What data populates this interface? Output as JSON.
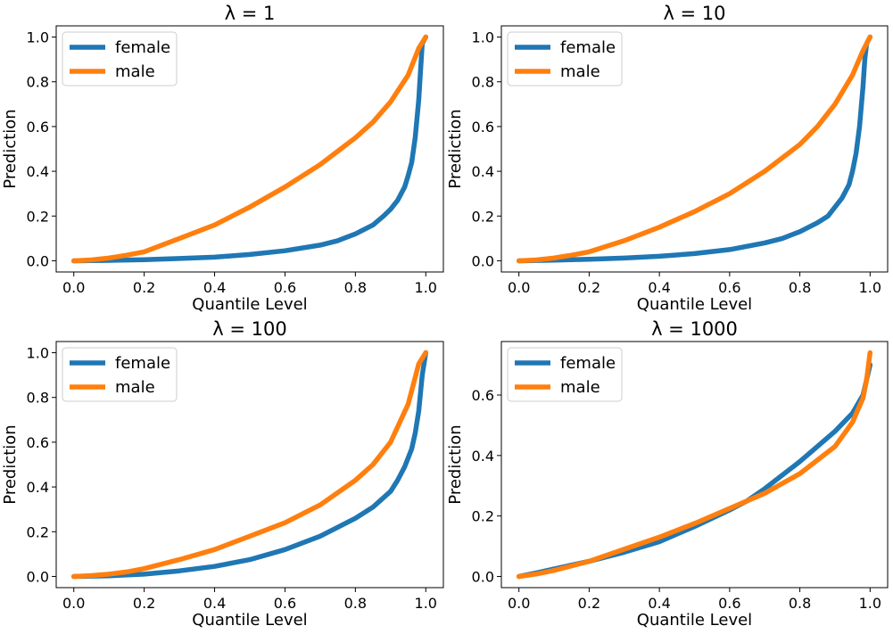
{
  "colors": {
    "female": "#1f77b4",
    "male": "#ff7f0e"
  },
  "chart_data": [
    {
      "type": "line",
      "title": "λ = 1",
      "xlabel": "Quantile Level",
      "ylabel": "Prediction",
      "xlim": [
        -0.05,
        1.05
      ],
      "ylim": [
        -0.05,
        1.05
      ],
      "xticks": [
        0.0,
        0.2,
        0.4,
        0.6,
        0.8,
        1.0
      ],
      "xtick_labels": [
        "0.0",
        "0.2",
        "0.4",
        "0.6",
        "0.8",
        "1.0"
      ],
      "yticks": [
        0.0,
        0.2,
        0.4,
        0.6,
        0.8,
        1.0
      ],
      "ytick_labels": [
        "0.0",
        "0.2",
        "0.4",
        "0.6",
        "0.8",
        "1.0"
      ],
      "grid": false,
      "legend": "top-left",
      "series": [
        {
          "name": "female",
          "x": [
            0,
            0.1,
            0.2,
            0.3,
            0.4,
            0.5,
            0.6,
            0.7,
            0.75,
            0.8,
            0.85,
            0.88,
            0.9,
            0.92,
            0.94,
            0.95,
            0.96,
            0.97,
            0.98,
            0.985,
            0.99,
            1.0
          ],
          "y": [
            0,
            0.002,
            0.005,
            0.01,
            0.016,
            0.028,
            0.045,
            0.07,
            0.09,
            0.12,
            0.16,
            0.2,
            0.23,
            0.27,
            0.33,
            0.38,
            0.44,
            0.55,
            0.72,
            0.85,
            0.97,
            1.0
          ]
        },
        {
          "name": "male",
          "x": [
            0,
            0.05,
            0.1,
            0.15,
            0.2,
            0.3,
            0.4,
            0.5,
            0.6,
            0.7,
            0.8,
            0.85,
            0.9,
            0.95,
            0.98,
            1.0
          ],
          "y": [
            0,
            0.004,
            0.012,
            0.025,
            0.04,
            0.1,
            0.16,
            0.24,
            0.33,
            0.43,
            0.55,
            0.62,
            0.71,
            0.83,
            0.95,
            1.0
          ]
        }
      ]
    },
    {
      "type": "line",
      "title": "λ = 10",
      "xlabel": "Quantile Level",
      "ylabel": "Prediction",
      "xlim": [
        -0.05,
        1.05
      ],
      "ylim": [
        -0.05,
        1.05
      ],
      "xticks": [
        0.0,
        0.2,
        0.4,
        0.6,
        0.8,
        1.0
      ],
      "xtick_labels": [
        "0.0",
        "0.2",
        "0.4",
        "0.6",
        "0.8",
        "1.0"
      ],
      "yticks": [
        0.0,
        0.2,
        0.4,
        0.6,
        0.8,
        1.0
      ],
      "ytick_labels": [
        "0.0",
        "0.2",
        "0.4",
        "0.6",
        "0.8",
        "1.0"
      ],
      "grid": false,
      "legend": "top-left",
      "series": [
        {
          "name": "female",
          "x": [
            0,
            0.1,
            0.2,
            0.3,
            0.4,
            0.5,
            0.6,
            0.7,
            0.75,
            0.8,
            0.85,
            0.88,
            0.9,
            0.92,
            0.94,
            0.95,
            0.96,
            0.97,
            0.98,
            0.985,
            0.99,
            1.0
          ],
          "y": [
            0,
            0.003,
            0.007,
            0.012,
            0.02,
            0.032,
            0.05,
            0.08,
            0.1,
            0.13,
            0.17,
            0.2,
            0.24,
            0.28,
            0.34,
            0.4,
            0.48,
            0.6,
            0.78,
            0.9,
            0.97,
            1.0
          ]
        },
        {
          "name": "male",
          "x": [
            0,
            0.05,
            0.1,
            0.15,
            0.2,
            0.3,
            0.4,
            0.5,
            0.6,
            0.7,
            0.8,
            0.85,
            0.9,
            0.95,
            0.98,
            1.0
          ],
          "y": [
            0,
            0.004,
            0.012,
            0.025,
            0.04,
            0.09,
            0.15,
            0.22,
            0.3,
            0.4,
            0.52,
            0.6,
            0.7,
            0.83,
            0.94,
            1.0
          ]
        }
      ]
    },
    {
      "type": "line",
      "title": "λ = 100",
      "xlabel": "Quantile Level",
      "ylabel": "Prediction",
      "xlim": [
        -0.05,
        1.05
      ],
      "ylim": [
        -0.05,
        1.05
      ],
      "xticks": [
        0.0,
        0.2,
        0.4,
        0.6,
        0.8,
        1.0
      ],
      "xtick_labels": [
        "0.0",
        "0.2",
        "0.4",
        "0.6",
        "0.8",
        "1.0"
      ],
      "yticks": [
        0.0,
        0.2,
        0.4,
        0.6,
        0.8,
        1.0
      ],
      "ytick_labels": [
        "0.0",
        "0.2",
        "0.4",
        "0.6",
        "0.8",
        "1.0"
      ],
      "grid": false,
      "legend": "top-left",
      "series": [
        {
          "name": "female",
          "x": [
            0,
            0.1,
            0.2,
            0.3,
            0.4,
            0.5,
            0.6,
            0.7,
            0.75,
            0.8,
            0.85,
            0.9,
            0.92,
            0.94,
            0.96,
            0.97,
            0.98,
            0.99,
            1.0
          ],
          "y": [
            0,
            0.003,
            0.01,
            0.025,
            0.045,
            0.075,
            0.12,
            0.18,
            0.22,
            0.26,
            0.31,
            0.38,
            0.43,
            0.49,
            0.57,
            0.64,
            0.74,
            0.9,
            1.0
          ]
        },
        {
          "name": "male",
          "x": [
            0,
            0.05,
            0.1,
            0.15,
            0.2,
            0.3,
            0.4,
            0.5,
            0.6,
            0.7,
            0.8,
            0.85,
            0.9,
            0.95,
            0.98,
            1.0
          ],
          "y": [
            0,
            0.004,
            0.01,
            0.02,
            0.035,
            0.075,
            0.12,
            0.18,
            0.24,
            0.32,
            0.43,
            0.5,
            0.6,
            0.77,
            0.95,
            1.0
          ]
        }
      ]
    },
    {
      "type": "line",
      "title": "λ = 1000",
      "xlabel": "Quantile Level",
      "ylabel": "Prediction",
      "xlim": [
        -0.05,
        1.05
      ],
      "ylim": [
        -0.037,
        0.777
      ],
      "xticks": [
        0.0,
        0.2,
        0.4,
        0.6,
        0.8,
        1.0
      ],
      "xtick_labels": [
        "0.0",
        "0.2",
        "0.4",
        "0.6",
        "0.8",
        "1.0"
      ],
      "yticks": [
        0.0,
        0.2,
        0.4,
        0.6
      ],
      "ytick_labels": [
        "0.0",
        "0.2",
        "0.4",
        "0.6"
      ],
      "grid": false,
      "legend": "top-left",
      "series": [
        {
          "name": "female",
          "x": [
            0,
            0.05,
            0.1,
            0.2,
            0.3,
            0.4,
            0.5,
            0.6,
            0.65,
            0.7,
            0.8,
            0.9,
            0.95,
            0.98,
            1.0
          ],
          "y": [
            0,
            0.012,
            0.025,
            0.05,
            0.08,
            0.115,
            0.165,
            0.22,
            0.25,
            0.29,
            0.38,
            0.48,
            0.54,
            0.6,
            0.7
          ]
        },
        {
          "name": "male",
          "x": [
            0,
            0.05,
            0.1,
            0.2,
            0.3,
            0.4,
            0.5,
            0.6,
            0.65,
            0.7,
            0.8,
            0.9,
            0.95,
            0.98,
            0.99,
            1.0
          ],
          "y": [
            0,
            0.008,
            0.02,
            0.05,
            0.09,
            0.13,
            0.175,
            0.225,
            0.25,
            0.275,
            0.34,
            0.43,
            0.51,
            0.59,
            0.65,
            0.74
          ]
        }
      ]
    }
  ]
}
